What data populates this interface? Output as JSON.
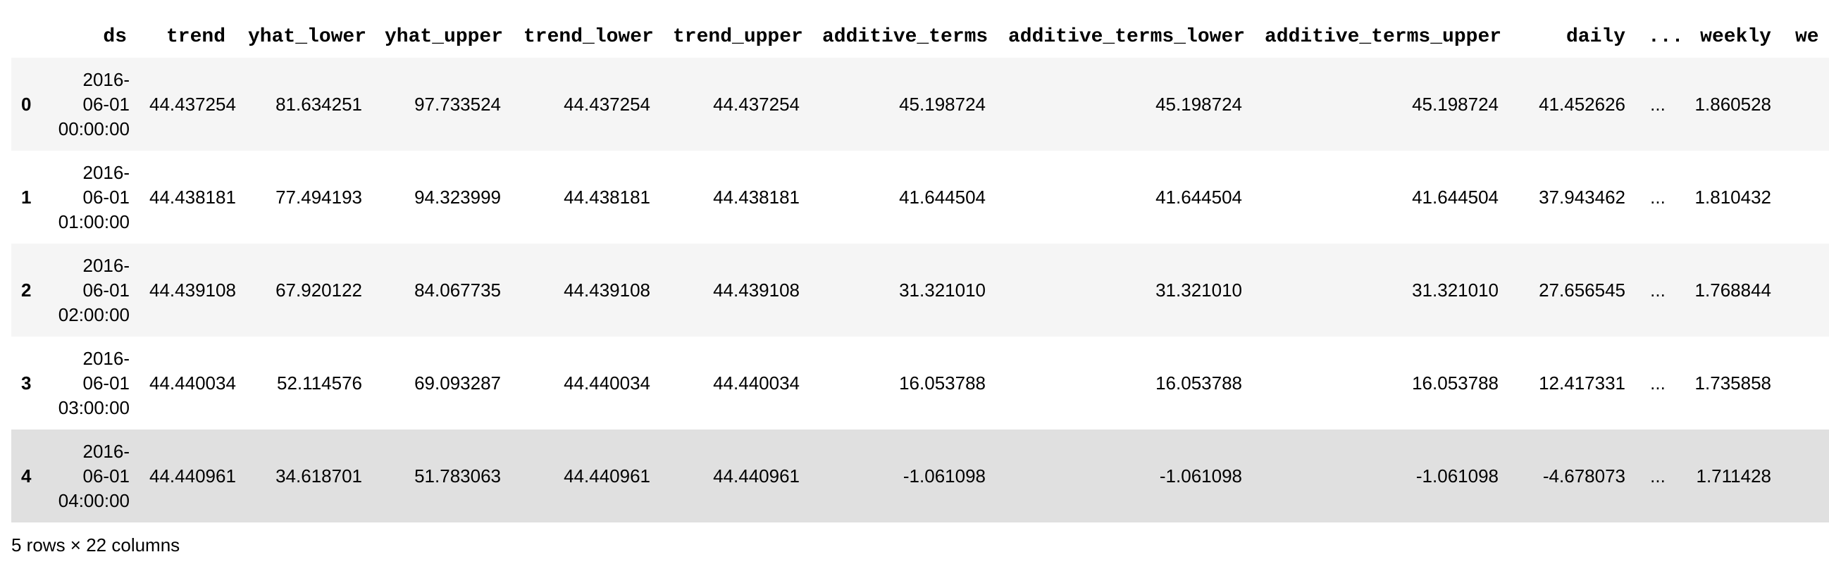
{
  "table": {
    "index_header": "",
    "columns": [
      "ds",
      "trend",
      "yhat_lower",
      "yhat_upper",
      "trend_lower",
      "trend_upper",
      "additive_terms",
      "additive_terms_lower",
      "additive_terms_upper",
      "daily",
      "...",
      "weekly",
      "we"
    ],
    "rows": [
      {
        "index": "0",
        "ds_date": "2016-",
        "ds_mid": "06-01",
        "ds_time": "00:00:00",
        "trend": "44.437254",
        "yhat_lower": "81.634251",
        "yhat_upper": "97.733524",
        "trend_lower": "44.437254",
        "trend_upper": "44.437254",
        "additive_terms": "45.198724",
        "additive_terms_lower": "45.198724",
        "additive_terms_upper": "45.198724",
        "daily": "41.452626",
        "ellipsis": "...",
        "weekly": "1.860528"
      },
      {
        "index": "1",
        "ds_date": "2016-",
        "ds_mid": "06-01",
        "ds_time": "01:00:00",
        "trend": "44.438181",
        "yhat_lower": "77.494193",
        "yhat_upper": "94.323999",
        "trend_lower": "44.438181",
        "trend_upper": "44.438181",
        "additive_terms": "41.644504",
        "additive_terms_lower": "41.644504",
        "additive_terms_upper": "41.644504",
        "daily": "37.943462",
        "ellipsis": "...",
        "weekly": "1.810432"
      },
      {
        "index": "2",
        "ds_date": "2016-",
        "ds_mid": "06-01",
        "ds_time": "02:00:00",
        "trend": "44.439108",
        "yhat_lower": "67.920122",
        "yhat_upper": "84.067735",
        "trend_lower": "44.439108",
        "trend_upper": "44.439108",
        "additive_terms": "31.321010",
        "additive_terms_lower": "31.321010",
        "additive_terms_upper": "31.321010",
        "daily": "27.656545",
        "ellipsis": "...",
        "weekly": "1.768844"
      },
      {
        "index": "3",
        "ds_date": "2016-",
        "ds_mid": "06-01",
        "ds_time": "03:00:00",
        "trend": "44.440034",
        "yhat_lower": "52.114576",
        "yhat_upper": "69.093287",
        "trend_lower": "44.440034",
        "trend_upper": "44.440034",
        "additive_terms": "16.053788",
        "additive_terms_lower": "16.053788",
        "additive_terms_upper": "16.053788",
        "daily": "12.417331",
        "ellipsis": "...",
        "weekly": "1.735858"
      },
      {
        "index": "4",
        "ds_date": "2016-",
        "ds_mid": "06-01",
        "ds_time": "04:00:00",
        "trend": "44.440961",
        "yhat_lower": "34.618701",
        "yhat_upper": "51.783063",
        "trend_lower": "44.440961",
        "trend_upper": "44.440961",
        "additive_terms": "-1.061098",
        "additive_terms_lower": "-1.061098",
        "additive_terms_upper": "-1.061098",
        "daily": "-4.678073",
        "ellipsis": "...",
        "weekly": "1.711428"
      }
    ]
  },
  "footer": {
    "shape_text": "5 rows × 22 columns"
  },
  "colors": {
    "row_stripe": "#f5f5f5",
    "row_hover": "#e0e0e0"
  }
}
